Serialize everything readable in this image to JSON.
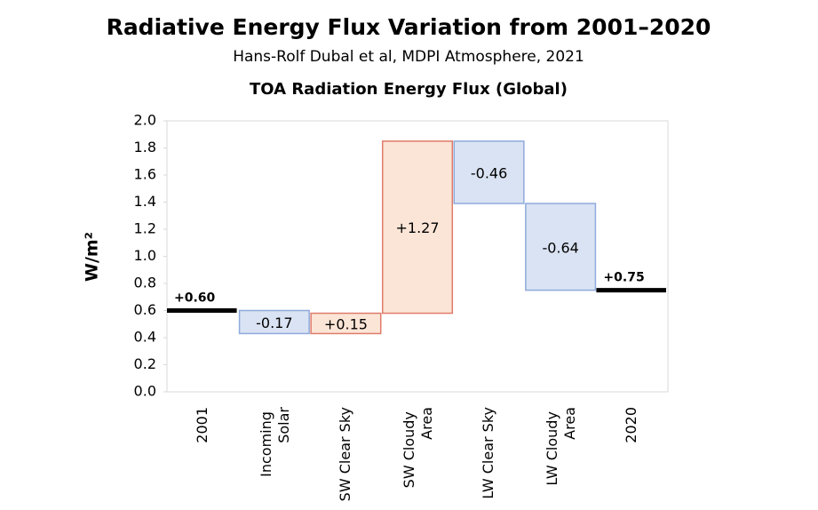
{
  "chart_data": {
    "type": "waterfall",
    "title": "Radiative Energy Flux Variation from 2001–2020",
    "subtitle": "Hans-Rolf Dubal et al, MDPI Atmosphere, 2021",
    "chart_title": "TOA Radiation Energy Flux (Global)",
    "y_label": "W/m²",
    "categories": [
      "2001",
      "Incoming Solar",
      "SW Clear Sky",
      "SW Cloudy Area",
      "LW Clear Sky",
      "LW Cloudy Area",
      "2020"
    ],
    "measure": [
      "absolute",
      "relative",
      "relative",
      "relative",
      "relative",
      "relative",
      "absolute"
    ],
    "values": [
      0.6,
      -0.17,
      0.15,
      1.27,
      -0.46,
      -0.64,
      0.75
    ],
    "value_labels": [
      "+0.60",
      "-0.17",
      "+0.15",
      "+1.27",
      "-0.46",
      "-0.64",
      "+0.75"
    ],
    "increase_color": "#fbe5d6",
    "increase_edge": "#e07b6a",
    "decrease_color": "#dae3f3",
    "decrease_edge": "#8faadc",
    "total_color": "#000000",
    "ylim": [
      0,
      2.0
    ],
    "yticks": [
      {
        "value": 0,
        "label": "0.0"
      },
      0.2,
      0.4,
      0.6,
      0.8,
      {
        "value": 1,
        "label": "1.0"
      },
      1.2,
      1.4,
      1.6,
      1.8,
      {
        "value": 2,
        "label": "2.0"
      }
    ],
    "grid": false
  }
}
